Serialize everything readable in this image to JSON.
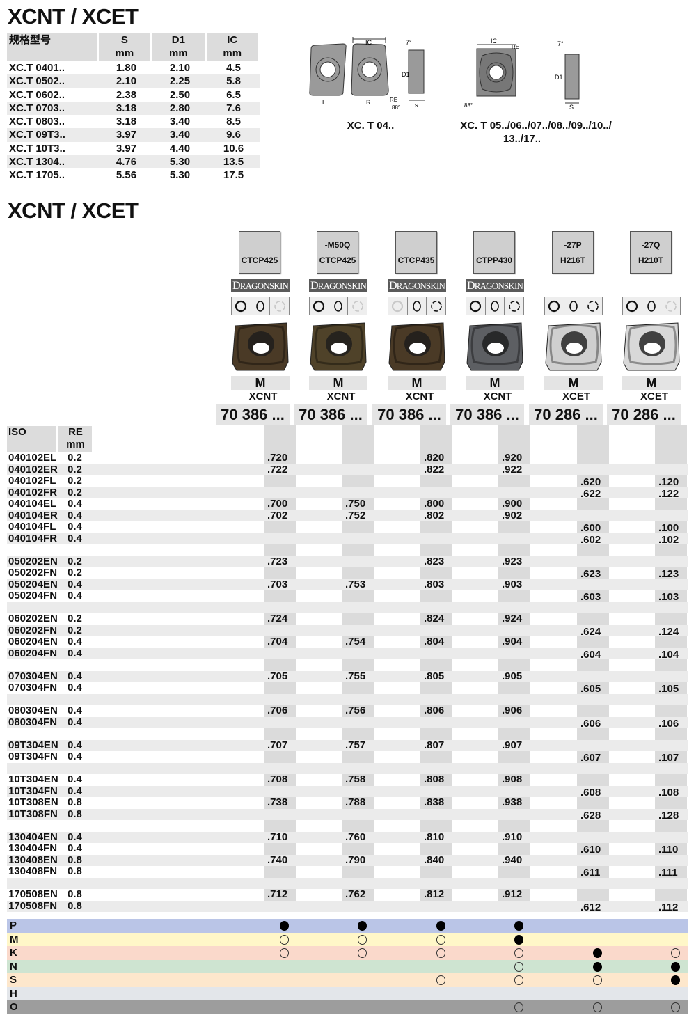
{
  "title1": "XCNT / XCET",
  "title2": "XCNT / XCET",
  "dims_table": {
    "headers": [
      [
        "规格型号",
        ""
      ],
      [
        "S",
        "mm"
      ],
      [
        "D1",
        "mm"
      ],
      [
        "IC",
        "mm"
      ]
    ],
    "rows": [
      [
        "XC.T 0401..",
        "1.80",
        "2.10",
        "4.5"
      ],
      [
        "XC.T 0502..",
        "2.10",
        "2.25",
        "5.8"
      ],
      [
        "XC.T 0602..",
        "2.38",
        "2.50",
        "6.5"
      ],
      [
        "XC.T 0703..",
        "3.18",
        "2.80",
        "7.6"
      ],
      [
        "XC.T 0803..",
        "3.18",
        "3.40",
        "8.5"
      ],
      [
        "XC.T 09T3..",
        "3.97",
        "3.40",
        "9.6"
      ],
      [
        "XC.T 10T3..",
        "3.97",
        "4.40",
        "10.6"
      ],
      [
        "XC.T 1304..",
        "4.76",
        "5.30",
        "13.5"
      ],
      [
        "XC.T 1705..",
        "5.56",
        "5.30",
        "17.5"
      ]
    ]
  },
  "diagrams": {
    "left_caption": "XC. T 04..",
    "right_caption_1": "XC. T 05../06../07../08../09../10../",
    "right_caption_2": "13../17..",
    "labels": {
      "ic": "IC",
      "l": "L",
      "r": "R",
      "re": "RE",
      "angle88": "88°",
      "angle7": "7°",
      "d1": "D1",
      "s": "s",
      "S": "S"
    }
  },
  "products": [
    {
      "chipbreaker": "",
      "grade": "CTCP425",
      "dragonskin": true,
      "insert_color": "#4a3a26",
      "material": "M",
      "family": "XCNT",
      "order": "70 386 ...",
      "icons": [
        "solid",
        "solid",
        "faint"
      ]
    },
    {
      "chipbreaker": "-M50Q",
      "grade": "CTCP425",
      "dragonskin": true,
      "insert_color": "#4f4229",
      "material": "M",
      "family": "XCNT",
      "order": "70 386 ...",
      "icons": [
        "solid",
        "solid",
        "faint"
      ]
    },
    {
      "chipbreaker": "",
      "grade": "CTCP435",
      "dragonskin": true,
      "insert_color": "#4a3a26",
      "material": "M",
      "family": "XCNT",
      "order": "70 386 ...",
      "icons": [
        "faint",
        "solid",
        "solid"
      ]
    },
    {
      "chipbreaker": "",
      "grade": "CTPP430",
      "dragonskin": true,
      "insert_color": "#5d5f63",
      "material": "M",
      "family": "XCNT",
      "order": "70 386 ...",
      "icons": [
        "solid",
        "solid",
        "solid"
      ]
    },
    {
      "chipbreaker": "-27P",
      "grade": "H216T",
      "dragonskin": false,
      "insert_color": "#cfcfcf",
      "material": "M",
      "family": "XCET",
      "order": "70 286 ...",
      "icons": [
        "solid",
        "solid",
        "solid"
      ]
    },
    {
      "chipbreaker": "-27Q",
      "grade": "H210T",
      "dragonskin": false,
      "insert_color": "#d8d8d8",
      "material": "M",
      "family": "XCET",
      "order": "70 286 ...",
      "icons": [
        "solid",
        "solid",
        "faint"
      ]
    }
  ],
  "dragonskin_label": {
    "first": "D",
    "rest": "RAGONSKIN"
  },
  "grid_headers": {
    "iso": "ISO",
    "re": "RE",
    "re_unit": "mm"
  },
  "rows": [
    [
      "040102EL",
      "0.2",
      ".720",
      "",
      ".820",
      ".920",
      "",
      ""
    ],
    [
      "040102ER",
      "0.2",
      ".722",
      "",
      ".822",
      ".922",
      "",
      ""
    ],
    [
      "040102FL",
      "0.2",
      "",
      "",
      "",
      "",
      ".620",
      ".120"
    ],
    [
      "040102FR",
      "0.2",
      "",
      "",
      "",
      "",
      ".622",
      ".122"
    ],
    [
      "040104EL",
      "0.4",
      ".700",
      ".750",
      ".800",
      ".900",
      "",
      ""
    ],
    [
      "040104ER",
      "0.4",
      ".702",
      ".752",
      ".802",
      ".902",
      "",
      ""
    ],
    [
      "040104FL",
      "0.4",
      "",
      "",
      "",
      "",
      ".600",
      ".100"
    ],
    [
      "040104FR",
      "0.4",
      "",
      "",
      "",
      "",
      ".602",
      ".102"
    ],
    null,
    [
      "050202EN",
      "0.2",
      ".723",
      "",
      ".823",
      ".923",
      "",
      ""
    ],
    [
      "050202FN",
      "0.2",
      "",
      "",
      "",
      "",
      ".623",
      ".123"
    ],
    [
      "050204EN",
      "0.4",
      ".703",
      ".753",
      ".803",
      ".903",
      "",
      ""
    ],
    [
      "050204FN",
      "0.4",
      "",
      "",
      "",
      "",
      ".603",
      ".103"
    ],
    null,
    [
      "060202EN",
      "0.2",
      ".724",
      "",
      ".824",
      ".924",
      "",
      ""
    ],
    [
      "060202FN",
      "0.2",
      "",
      "",
      "",
      "",
      ".624",
      ".124"
    ],
    [
      "060204EN",
      "0.4",
      ".704",
      ".754",
      ".804",
      ".904",
      "",
      ""
    ],
    [
      "060204FN",
      "0.4",
      "",
      "",
      "",
      "",
      ".604",
      ".104"
    ],
    null,
    [
      "070304EN",
      "0.4",
      ".705",
      ".755",
      ".805",
      ".905",
      "",
      ""
    ],
    [
      "070304FN",
      "0.4",
      "",
      "",
      "",
      "",
      ".605",
      ".105"
    ],
    null,
    [
      "080304EN",
      "0.4",
      ".706",
      ".756",
      ".806",
      ".906",
      "",
      ""
    ],
    [
      "080304FN",
      "0.4",
      "",
      "",
      "",
      "",
      ".606",
      ".106"
    ],
    null,
    [
      "09T304EN",
      "0.4",
      ".707",
      ".757",
      ".807",
      ".907",
      "",
      ""
    ],
    [
      "09T304FN",
      "0.4",
      "",
      "",
      "",
      "",
      ".607",
      ".107"
    ],
    null,
    [
      "10T304EN",
      "0.4",
      ".708",
      ".758",
      ".808",
      ".908",
      "",
      ""
    ],
    [
      "10T304FN",
      "0.4",
      "",
      "",
      "",
      "",
      ".608",
      ".108"
    ],
    [
      "10T308EN",
      "0.8",
      ".738",
      ".788",
      ".838",
      ".938",
      "",
      ""
    ],
    [
      "10T308FN",
      "0.8",
      "",
      "",
      "",
      "",
      ".628",
      ".128"
    ],
    null,
    [
      "130404EN",
      "0.4",
      ".710",
      ".760",
      ".810",
      ".910",
      "",
      ""
    ],
    [
      "130404FN",
      "0.4",
      "",
      "",
      "",
      "",
      ".610",
      ".110"
    ],
    [
      "130408EN",
      "0.8",
      ".740",
      ".790",
      ".840",
      ".940",
      "",
      ""
    ],
    [
      "130408FN",
      "0.8",
      "",
      "",
      "",
      "",
      ".611",
      ".111"
    ],
    null,
    [
      "170508EN",
      "0.8",
      ".712",
      ".762",
      ".812",
      ".912",
      "",
      ""
    ],
    [
      "170508FN",
      "0.8",
      "",
      "",
      "",
      "",
      ".612",
      ".112"
    ]
  ],
  "materials": [
    {
      "label": "P",
      "color": "#bac5e7",
      "marks": [
        "filled",
        "filled",
        "filled",
        "filled",
        "",
        ""
      ]
    },
    {
      "label": "M",
      "color": "#fff7c8",
      "marks": [
        "open",
        "open",
        "open",
        "filled",
        "",
        ""
      ]
    },
    {
      "label": "K",
      "color": "#fad9cb",
      "marks": [
        "open",
        "open",
        "open",
        "open",
        "filled",
        "open"
      ]
    },
    {
      "label": "N",
      "color": "#cee4d1",
      "marks": [
        "",
        "",
        "",
        "open",
        "filled",
        "filled"
      ]
    },
    {
      "label": "S",
      "color": "#fde7cc",
      "marks": [
        "",
        "",
        "open",
        "open",
        "open",
        "filled"
      ]
    },
    {
      "label": "H",
      "color": "#e3e6ea",
      "marks": [
        "",
        "",
        "",
        "",
        "",
        ""
      ]
    },
    {
      "label": "O",
      "color": "#9d9d9d",
      "marks": [
        "",
        "",
        "",
        "open",
        "open",
        "open"
      ]
    }
  ]
}
